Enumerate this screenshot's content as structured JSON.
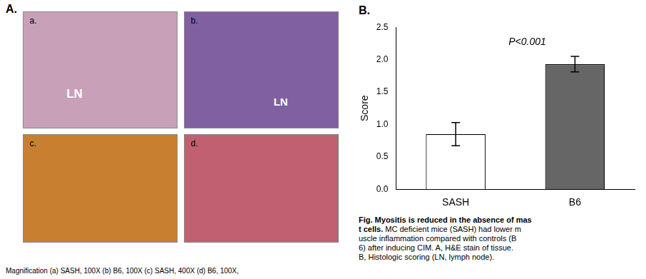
{
  "chart_data": {
    "type": "bar",
    "categories": [
      "SASH",
      "B6"
    ],
    "values": [
      0.85,
      1.93
    ],
    "errors": [
      0.18,
      0.12
    ],
    "colors": [
      "#ffffff",
      "#666666"
    ],
    "ylabel": "Score",
    "ylim": [
      0,
      2.5
    ],
    "yticks": [
      {
        "value": 0,
        "label": "0.0"
      },
      0.5,
      {
        "value": 1,
        "label": "1.0"
      },
      1.5,
      {
        "value": 2,
        "label": "2.0"
      },
      2.5
    ],
    "grid": false,
    "annotations": [
      "P<0.001"
    ]
  },
  "panel_labels": [
    "A.",
    "B."
  ],
  "caption_bold": "Fig. Myositis is reduced in the absence of mas\nt cells.",
  "caption_normal": " MC deficient mice (SASH) had lower m\nuscle inflammation compared with controls (B\n6) after inducing CIM. A, H&E stain of tissue.\nB, Histologic scoring (LN, lymph node).",
  "bottom_caption": "Magnification (a) SASH, 100X (b) B6, 100X (c) SASH, 400X (d) B6, 100X,",
  "image_panels": [
    {
      "label": "a.",
      "text": "LN",
      "color": "#c8a0b8"
    },
    {
      "label": "b.",
      "text": "LN",
      "color": "#8060a0"
    },
    {
      "label": "c.",
      "color": "#c88030"
    },
    {
      "label": "d.",
      "color": "#c06070"
    }
  ]
}
